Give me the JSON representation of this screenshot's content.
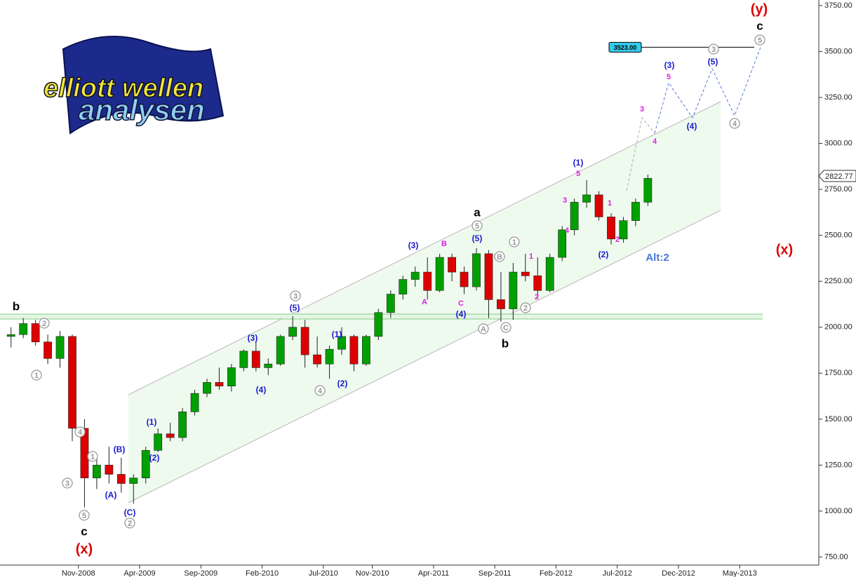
{
  "chart_data": {
    "type": "candlestick",
    "logo": [
      "elliott wellen",
      "analysen"
    ],
    "x": [
      "2008-05",
      "2008-06",
      "2008-07",
      "2008-08",
      "2008-09",
      "2008-10",
      "2008-11",
      "2008-12",
      "2009-01",
      "2009-02",
      "2009-03",
      "2009-04",
      "2009-05",
      "2009-06",
      "2009-07",
      "2009-08",
      "2009-09",
      "2009-10",
      "2009-11",
      "2009-12",
      "2010-01",
      "2010-02",
      "2010-03",
      "2010-04",
      "2010-05",
      "2010-06",
      "2010-07",
      "2010-08",
      "2010-09",
      "2010-10",
      "2010-11",
      "2010-12",
      "2011-01",
      "2011-02",
      "2011-03",
      "2011-04",
      "2011-05",
      "2011-06",
      "2011-07",
      "2011-08",
      "2011-09",
      "2011-10",
      "2011-11",
      "2011-12",
      "2012-01",
      "2012-02",
      "2012-03",
      "2012-04",
      "2012-05",
      "2012-06",
      "2012-07",
      "2012-08",
      "2012-09"
    ],
    "open": [
      1950,
      1960,
      2020,
      1920,
      1830,
      1950,
      1450,
      1180,
      1250,
      1200,
      1150,
      1180,
      1330,
      1420,
      1400,
      1540,
      1640,
      1700,
      1680,
      1780,
      1870,
      1780,
      1800,
      1950,
      2000,
      1850,
      1800,
      1880,
      1950,
      1800,
      1950,
      2080,
      2180,
      2260,
      2300,
      2200,
      2380,
      2300,
      2220,
      2400,
      2150,
      2100,
      2300,
      2280,
      2200,
      2380,
      2530,
      2680,
      2720,
      2600,
      2480,
      2580,
      2680
    ],
    "high": [
      2000,
      2050,
      2040,
      1960,
      1980,
      1960,
      1500,
      1290,
      1350,
      1290,
      1200,
      1350,
      1450,
      1480,
      1560,
      1660,
      1720,
      1780,
      1800,
      1880,
      1920,
      1830,
      1960,
      2060,
      2040,
      1950,
      1900,
      2000,
      1960,
      1960,
      2100,
      2200,
      2280,
      2330,
      2380,
      2400,
      2400,
      2330,
      2430,
      2420,
      2300,
      2350,
      2400,
      2380,
      2400,
      2550,
      2700,
      2800,
      2740,
      2620,
      2600,
      2700,
      2830
    ],
    "low": [
      1890,
      1940,
      1900,
      1800,
      1780,
      1380,
      1020,
      1120,
      1150,
      1100,
      1040,
      1150,
      1320,
      1380,
      1380,
      1520,
      1620,
      1660,
      1650,
      1760,
      1760,
      1740,
      1790,
      1930,
      1780,
      1780,
      1720,
      1850,
      1760,
      1790,
      1930,
      2050,
      2150,
      2220,
      2150,
      2190,
      2250,
      2180,
      2200,
      2050,
      2030,
      2040,
      2250,
      2160,
      2190,
      2360,
      2500,
      2650,
      2580,
      2450,
      2460,
      2550,
      2660
    ],
    "close": [
      1960,
      2020,
      1920,
      1830,
      1950,
      1450,
      1180,
      1250,
      1200,
      1150,
      1180,
      1330,
      1420,
      1400,
      1540,
      1640,
      1700,
      1680,
      1780,
      1870,
      1780,
      1800,
      1950,
      2000,
      1850,
      1800,
      1880,
      1950,
      1800,
      1950,
      2080,
      2180,
      2260,
      2300,
      2200,
      2380,
      2300,
      2220,
      2400,
      2150,
      2100,
      2300,
      2280,
      2200,
      2380,
      2530,
      2680,
      2720,
      2600,
      2480,
      2580,
      2680,
      2810
    ],
    "up_color": "#00a000",
    "down_color": "#dd0000",
    "ylim": [
      710,
      3780
    ],
    "yticks": [
      {
        "value": 750,
        "label": "750.00"
      },
      {
        "value": 1000,
        "label": "1000.00"
      },
      {
        "value": 1250,
        "label": "1250.00"
      },
      {
        "value": 1500,
        "label": "1500.00"
      },
      {
        "value": 1750,
        "label": "1750.00"
      },
      {
        "value": 2000,
        "label": "2000.00"
      },
      {
        "value": 2250,
        "label": "2250.00"
      },
      {
        "value": 2500,
        "label": "2500.00"
      },
      {
        "value": 2750,
        "label": "2750.00"
      },
      {
        "value": 3000,
        "label": "3000.00"
      },
      {
        "value": 3250,
        "label": "3250.00"
      },
      {
        "value": 3500,
        "label": "3500.00"
      },
      {
        "value": 3750,
        "label": "3750.00"
      }
    ],
    "xlim": [
      "2008-05",
      "2013-11"
    ],
    "xticks": [
      {
        "value": "2008-11",
        "label": "Nov-2008"
      },
      {
        "value": "2009-04",
        "label": "Apr-2009"
      },
      {
        "value": "2009-09",
        "label": "Sep-2009"
      },
      {
        "value": "2010-02",
        "label": "Feb-2010"
      },
      {
        "value": "2010-07",
        "label": "Jul-2010"
      },
      {
        "value": "2010-11",
        "label": "Nov-2010"
      },
      {
        "value": "2011-04",
        "label": "Apr-2011"
      },
      {
        "value": "2011-09",
        "label": "Sep-2011"
      },
      {
        "value": "2012-02",
        "label": "Feb-2012"
      },
      {
        "value": "2012-07",
        "label": "Jul-2012"
      },
      {
        "value": "2012-12",
        "label": "Dec-2012"
      },
      {
        "value": "2013-05",
        "label": "May-2013"
      }
    ],
    "last_price": 2822.77,
    "target": {
      "value": 3523,
      "label": "3523.00"
    },
    "annotations": [
      {
        "text": "b",
        "color": "#000000"
      },
      {
        "text": "c",
        "color": "#000000"
      },
      {
        "text": "a",
        "color": "#000000"
      },
      {
        "text": "b",
        "color": "#000000"
      },
      {
        "text": "c",
        "color": "#000000"
      },
      {
        "text": "(x)",
        "color": "#dd0000"
      },
      {
        "text": "(x)",
        "color": "#dd0000"
      },
      {
        "text": "(y)",
        "color": "#dd0000"
      },
      {
        "text": "(C)",
        "color": "#1a1acc"
      },
      {
        "text": "(A)",
        "color": "#1a1acc"
      },
      {
        "text": "(B)",
        "color": "#1a1acc"
      },
      {
        "text": "(1)",
        "color": "#1a1acc"
      },
      {
        "text": "(2)",
        "color": "#1a1acc"
      },
      {
        "text": "(3)",
        "color": "#1a1acc"
      },
      {
        "text": "(4)",
        "color": "#1a1acc"
      },
      {
        "text": "(5)",
        "color": "#1a1acc"
      },
      {
        "text": "(1)",
        "color": "#1a1acc"
      },
      {
        "text": "(2)",
        "color": "#1a1acc"
      },
      {
        "text": "(3)",
        "color": "#1a1acc"
      },
      {
        "text": "(5)",
        "color": "#1a1acc"
      },
      {
        "text": "(4)",
        "color": "#1a1acc"
      },
      {
        "text": "(1)",
        "color": "#1a1acc"
      },
      {
        "text": "(2)",
        "color": "#1a1acc"
      },
      {
        "text": "(3)",
        "color": "#1a1acc"
      },
      {
        "text": "(5)",
        "color": "#1a1acc"
      },
      {
        "text": "(4)",
        "color": "#1a1acc"
      },
      {
        "text": "Alt:2",
        "color": "#4477dd"
      },
      {
        "text": "A",
        "color": "#e020e0"
      },
      {
        "text": "B",
        "color": "#e020e0"
      },
      {
        "text": "C",
        "color": "#e020e0"
      },
      {
        "text": "1",
        "color": "#e020e0"
      },
      {
        "text": "2",
        "color": "#e020e0"
      },
      {
        "text": "3",
        "color": "#e020e0"
      },
      {
        "text": "4",
        "color": "#e020e0"
      },
      {
        "text": "5",
        "color": "#e020e0"
      },
      {
        "text": "1",
        "color": "#e020e0"
      },
      {
        "text": "2",
        "color": "#e020e0"
      },
      {
        "text": "3",
        "color": "#e020e0"
      },
      {
        "text": "4",
        "color": "#e020e0"
      },
      {
        "text": "5",
        "color": "#e020e0"
      },
      {
        "text": "2",
        "color": "#999999",
        "circled": true
      },
      {
        "text": "1",
        "color": "#999999",
        "circled": true
      },
      {
        "text": "4",
        "color": "#999999",
        "circled": true
      },
      {
        "text": "3",
        "color": "#999999",
        "circled": true
      },
      {
        "text": "1",
        "color": "#999999",
        "circled": true
      },
      {
        "text": "5",
        "color": "#999999",
        "circled": true
      },
      {
        "text": "2",
        "color": "#999999",
        "circled": true
      },
      {
        "text": "3",
        "color": "#999999",
        "circled": true
      },
      {
        "text": "4",
        "color": "#999999",
        "circled": true
      },
      {
        "text": "5",
        "color": "#999999",
        "circled": true
      },
      {
        "text": "B",
        "color": "#999999",
        "circled": true
      },
      {
        "text": "1",
        "color": "#999999",
        "circled": true
      },
      {
        "text": "A",
        "color": "#999999",
        "circled": true
      },
      {
        "text": "C",
        "color": "#999999",
        "circled": true
      },
      {
        "text": "2",
        "color": "#999999",
        "circled": true
      },
      {
        "text": "3",
        "color": "#999999",
        "circled": true
      },
      {
        "text": "5",
        "color": "#999999",
        "circled": true
      },
      {
        "text": "4",
        "color": "#999999",
        "circled": true
      }
    ]
  }
}
